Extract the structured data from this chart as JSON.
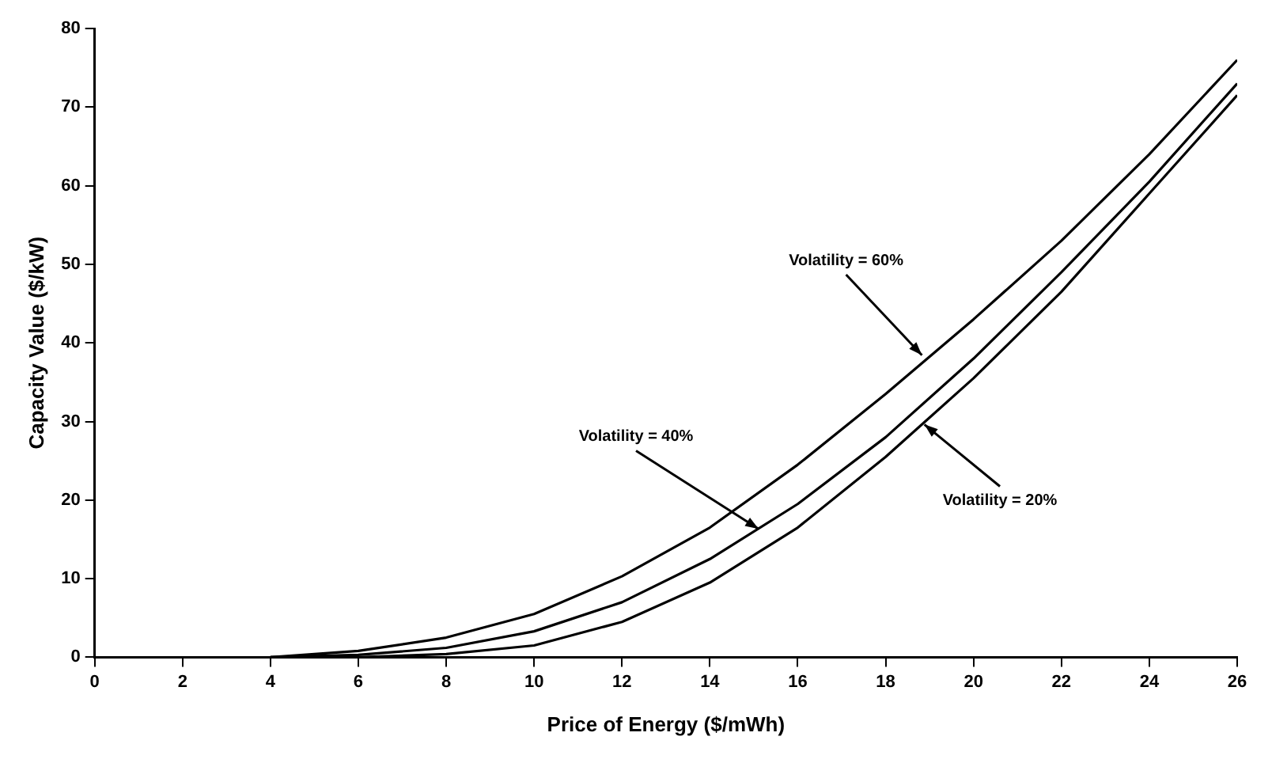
{
  "chart_data": {
    "type": "line",
    "xlabel": "Price of Energy ($/mWh)",
    "ylabel": "Capacity Value ($/kW)",
    "x": [
      4,
      6,
      8,
      10,
      12,
      14,
      16,
      18,
      20,
      22,
      24,
      26
    ],
    "series": [
      {
        "color": "#000000",
        "values": [
          0,
          0.8,
          2.5,
          5.5,
          10.3,
          16.5,
          24.5,
          33.5,
          43,
          53,
          64,
          76
        ]
      },
      {
        "color": "#000000",
        "values": [
          0,
          0.3,
          1.2,
          3.3,
          7,
          12.5,
          19.5,
          28,
          38,
          49,
          60.5,
          73
        ]
      },
      {
        "color": "#000000",
        "values": [
          0,
          0,
          0.4,
          1.5,
          4.5,
          9.5,
          16.5,
          25.5,
          35.5,
          46.5,
          59,
          71.5
        ]
      }
    ],
    "annotations": [
      {
        "text": "Volatility = 60%",
        "x": 18.9,
        "y": 38
      },
      {
        "text": "Volatility = 40%",
        "x": 15.2,
        "y": 16
      },
      {
        "text": "Volatility = 20%",
        "x": 18.8,
        "y": 30
      }
    ],
    "xlim": [
      0,
      26
    ],
    "xticks": [
      0,
      2,
      4,
      6,
      8,
      10,
      12,
      14,
      16,
      18,
      20,
      22,
      24,
      26
    ],
    "ylim": [
      0,
      80
    ],
    "yticks": [
      0,
      10,
      20,
      30,
      40,
      50,
      60,
      70,
      80
    ],
    "grid": false,
    "legend": false,
    "marker": "none",
    "line_style": "solid"
  }
}
